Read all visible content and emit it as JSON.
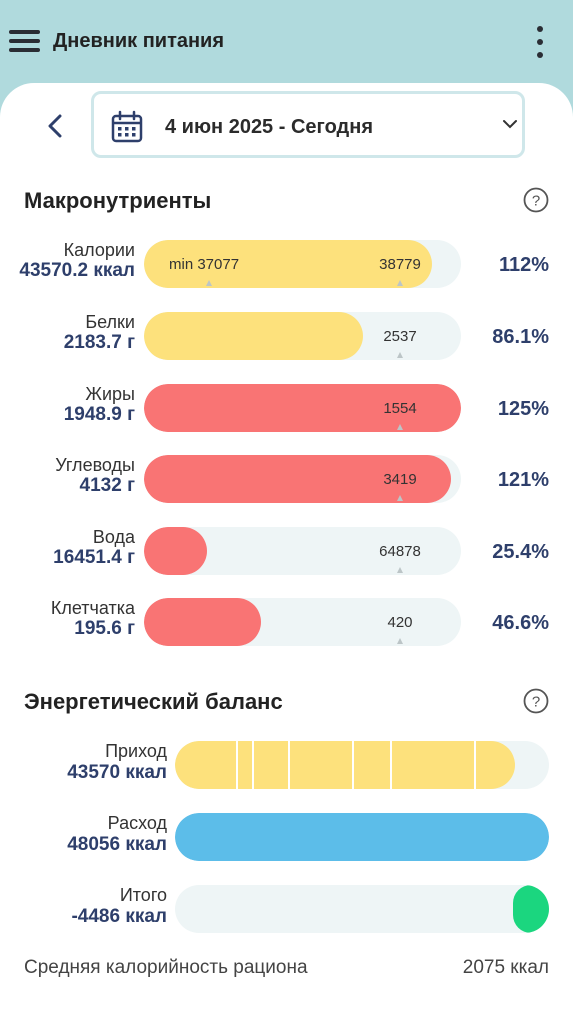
{
  "app": {
    "title": "Дневник питания"
  },
  "date_selector": {
    "label": "4 июн 2025 - Сегодня"
  },
  "macros": {
    "title": "Макронутриенты",
    "rows": [
      {
        "name": "Калории",
        "value": "43570.2 ккал",
        "fill": 0.91,
        "min_label": "min 37077",
        "target_label": "38779",
        "percent": "112%",
        "color": "#fde17c"
      },
      {
        "name": "Белки",
        "value": "2183.7 г",
        "fill": 0.69,
        "target_label": "2537",
        "percent": "86.1%",
        "color": "#fde17c"
      },
      {
        "name": "Жиры",
        "value": "1948.9 г",
        "fill": 1.0,
        "target_label": "1554",
        "percent": "125%",
        "color": "#f97474"
      },
      {
        "name": "Углеводы",
        "value": "4132 г",
        "fill": 0.97,
        "target_label": "3419",
        "percent": "121%",
        "color": "#f97474"
      },
      {
        "name": "Вода",
        "value": "16451.4 г",
        "fill": 0.2,
        "target_label": "64878",
        "percent": "25.4%",
        "color": "#f97474"
      },
      {
        "name": "Клетчатка",
        "value": "195.6 г",
        "fill": 0.37,
        "target_label": "420",
        "percent": "46.6%",
        "color": "#f97474"
      }
    ]
  },
  "energy": {
    "title": "Энергетический баланс",
    "rows": [
      {
        "name": "Приход",
        "value": "43570 ккал",
        "fill": 0.91,
        "color": "#fde17c"
      },
      {
        "name": "Расход",
        "value": "48056 ккал",
        "fill": 1.0,
        "color": "#5cbde9"
      },
      {
        "name": "Итого",
        "value": "-4486 ккал",
        "fill": 0.095,
        "color": "#1bd67f"
      }
    ]
  },
  "footer": {
    "label": "Средняя калорийность рациона",
    "value": "2075 ккал"
  },
  "icons": {
    "menu": "hamburger-menu-icon",
    "more": "kebab-menu-icon",
    "back": "chevron-left-icon",
    "calendar": "calendar-icon",
    "dropdown": "chevron-down-icon",
    "help": "question-circle-icon"
  }
}
